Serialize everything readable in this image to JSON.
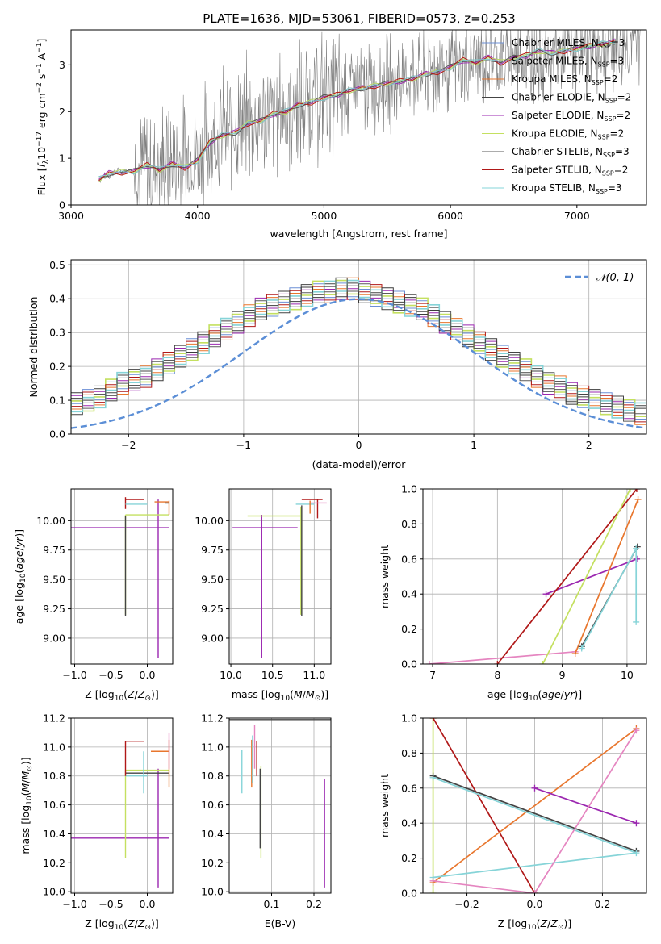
{
  "title": "PLATE=1636, MJD=53061, FIBERID=0573, z=0.253",
  "colors": {
    "chabrier_miles": "#6b8fd6",
    "salpeter_miles": "#3b3b3b",
    "kroupa_miles": "#e8762d",
    "chabrier_elodie": "#444444",
    "salpeter_elodie": "#9b27b0",
    "kroupa_elodie": "#c4e060",
    "chabrier_stelib": "#5a5a5a",
    "salpeter_stelib": "#b01818",
    "kroupa_stelib": "#86d4d8",
    "pink": "#e585c0",
    "normal": "#5b8ed6",
    "spectrum": "#808080"
  },
  "chart_data": [
    {
      "id": "spectrum",
      "type": "line",
      "xlabel": "wavelength [Angstrom, rest frame]",
      "ylabel": "Flux [f_λ 10^-17 erg cm^-2 s^-1 A^-1]",
      "xlim": [
        3000,
        7550
      ],
      "ylim": [
        0,
        3.75
      ],
      "xticks": [
        "3000",
        "4000",
        "5000",
        "6000",
        "7000"
      ],
      "yticks": [
        "0",
        "1",
        "2",
        "3"
      ],
      "legend_position": "top-right",
      "legend": [
        "Chabrier MILES, N_SSP=3",
        "Salpeter MILES, N_SSP=3",
        "Kroupa MILES, N_SSP=2",
        "Chabrier ELODIE, N_SSP=2",
        "Salpeter ELODIE, N_SSP=2",
        "Kroupa ELODIE, N_SSP=2",
        "Chabrier STELIB, N_SSP=3",
        "Salpeter STELIB, N_SSP=2",
        "Kroupa STELIB, N_SSP=3"
      ],
      "data_x": [
        3220,
        3350,
        3500,
        3700,
        3900,
        4100,
        4300,
        4500,
        4700,
        4900,
        5100,
        5300,
        5500,
        5700,
        5900,
        6100,
        6300,
        6500,
        6700,
        6900,
        7100,
        7300,
        7500
      ],
      "data_y": [
        0.55,
        0.7,
        0.75,
        0.85,
        0.95,
        1.4,
        1.65,
        1.85,
        2.05,
        2.25,
        2.45,
        2.5,
        2.6,
        2.75,
        2.9,
        3.0,
        3.1,
        3.15,
        3.2,
        3.3,
        3.35,
        3.45,
        3.5
      ],
      "model_x": [
        3220,
        3300,
        3400,
        3500,
        3600,
        3700,
        3800,
        3900,
        4000,
        4100,
        4200,
        4300,
        4400,
        4500,
        4600,
        4700,
        4800,
        4900,
        5000,
        5100,
        5200,
        5300,
        5400,
        5500,
        5600,
        5700,
        5800,
        5900,
        6000,
        6100,
        6200,
        6300,
        6400,
        6500,
        6600,
        6700,
        6800,
        6900,
        7000,
        7100,
        7200,
        7300
      ],
      "model_y": [
        0.55,
        0.68,
        0.7,
        0.72,
        0.85,
        0.75,
        0.88,
        0.8,
        0.95,
        1.35,
        1.5,
        1.55,
        1.75,
        1.8,
        1.95,
        2.0,
        2.15,
        2.2,
        2.3,
        2.35,
        2.45,
        2.5,
        2.55,
        2.6,
        2.65,
        2.7,
        2.8,
        2.85,
        2.95,
        3.1,
        3.05,
        3.15,
        3.05,
        3.15,
        3.2,
        3.3,
        3.25,
        3.3,
        3.35,
        3.4,
        3.45,
        3.5
      ]
    },
    {
      "id": "residuals",
      "type": "line",
      "xlabel": "(data-model)/error",
      "ylabel": "Normed distribution",
      "xlim": [
        -2.5,
        2.5
      ],
      "ylim": [
        0,
        0.515
      ],
      "xticks": [
        "−2",
        "−1",
        "0",
        "1",
        "2"
      ],
      "yticks": [
        "0.0",
        "0.1",
        "0.2",
        "0.3",
        "0.4",
        "0.5"
      ],
      "grid": true,
      "legend_position": "top-right",
      "legend": [
        "𝒩(0, 1)"
      ],
      "bin_width": 0.1,
      "histogram": [
        0.02,
        0.02,
        0.03,
        0.03,
        0.04,
        0.04,
        0.05,
        0.06,
        0.07,
        0.08,
        0.09,
        0.1,
        0.11,
        0.13,
        0.15,
        0.16,
        0.17,
        0.19,
        0.21,
        0.23,
        0.25,
        0.27,
        0.29,
        0.31,
        0.33,
        0.35,
        0.37,
        0.38,
        0.39,
        0.4,
        0.41,
        0.42,
        0.42,
        0.43,
        0.43,
        0.42,
        0.41,
        0.4,
        0.39,
        0.38,
        0.37,
        0.35,
        0.33,
        0.31,
        0.29,
        0.27,
        0.25,
        0.23,
        0.21,
        0.19,
        0.17,
        0.15,
        0.14,
        0.12,
        0.11,
        0.1,
        0.09,
        0.08,
        0.07,
        0.06,
        0.05,
        0.05,
        0.04,
        0.04,
        0.03,
        0.03,
        0.03,
        0.02,
        0.02,
        0.02
      ],
      "normal_mean": 0,
      "normal_sigma": 1
    },
    {
      "id": "age_vs_Z",
      "type": "scatter",
      "xlabel": "Z [log10(Z/Z⊙)]",
      "ylabel": "age  [log10(age/yr)]",
      "xlim": [
        -1.05,
        0.35
      ],
      "ylim": [
        8.78,
        10.27
      ],
      "xticks": [
        "−1.0",
        "−0.5",
        "0.0",
        "0.5"
      ],
      "yticks": [
        "9.00",
        "9.25",
        "9.50",
        "9.75",
        "10.00"
      ],
      "grid": true,
      "segments": [
        {
          "c": "salpeter_elodie",
          "x1": -1.05,
          "y1": 9.94,
          "x2": 0.3,
          "y2": 9.94
        },
        {
          "c": "salpeter_elodie",
          "x1": 0.15,
          "y1": 8.83,
          "x2": 0.15,
          "y2": 10.18
        },
        {
          "c": "kroupa_elodie",
          "x1": -0.3,
          "y1": 9.2,
          "x2": -0.3,
          "y2": 10.05
        },
        {
          "c": "kroupa_elodie",
          "x1": -0.3,
          "y1": 10.05,
          "x2": 0.3,
          "y2": 10.05
        },
        {
          "c": "chabrier_elodie",
          "x1": -0.3,
          "y1": 9.19,
          "x2": -0.3,
          "y2": 10.04
        },
        {
          "c": "salpeter_stelib",
          "x1": -0.3,
          "y1": 10.18,
          "x2": -0.05,
          "y2": 10.18
        },
        {
          "c": "salpeter_stelib",
          "x1": -0.3,
          "y1": 10.1,
          "x2": -0.3,
          "y2": 10.2
        },
        {
          "c": "kroupa_stelib",
          "x1": -0.3,
          "y1": 10.14,
          "x2": 0.0,
          "y2": 10.14
        },
        {
          "c": "kroupa_miles",
          "x1": 0.1,
          "y1": 10.16,
          "x2": 0.3,
          "y2": 10.16
        },
        {
          "c": "kroupa_miles",
          "x1": 0.3,
          "y1": 10.05,
          "x2": 0.3,
          "y2": 10.17
        },
        {
          "c": "salpeter_miles",
          "x1": 0.25,
          "y1": 10.15,
          "x2": 0.3,
          "y2": 10.15
        }
      ]
    },
    {
      "id": "age_vs_mass",
      "type": "scatter",
      "xlabel": "mass [log10(M/M⊙)]",
      "ylabel": "",
      "xlim": [
        9.98,
        11.2
      ],
      "ylim": [
        8.78,
        10.27
      ],
      "xticks": [
        "10.0",
        "10.5",
        "11.0"
      ],
      "yticks": [
        "9.00",
        "9.25",
        "9.50",
        "9.75",
        "10.00"
      ],
      "grid": true,
      "segments": [
        {
          "c": "salpeter_elodie",
          "x1": 10.02,
          "y1": 9.94,
          "x2": 10.8,
          "y2": 9.94
        },
        {
          "c": "salpeter_elodie",
          "x1": 10.37,
          "y1": 8.83,
          "x2": 10.37,
          "y2": 10.05
        },
        {
          "c": "kroupa_elodie",
          "x1": 10.2,
          "y1": 10.04,
          "x2": 10.84,
          "y2": 10.04
        },
        {
          "c": "kroupa_elodie",
          "x1": 10.84,
          "y1": 9.2,
          "x2": 10.84,
          "y2": 10.12
        },
        {
          "c": "chabrier_elodie",
          "x1": 10.85,
          "y1": 9.19,
          "x2": 10.85,
          "y2": 10.13
        },
        {
          "c": "salpeter_stelib",
          "x1": 10.85,
          "y1": 10.18,
          "x2": 11.1,
          "y2": 10.18
        },
        {
          "c": "salpeter_stelib",
          "x1": 11.04,
          "y1": 10.02,
          "x2": 11.04,
          "y2": 10.18
        },
        {
          "c": "kroupa_stelib",
          "x1": 10.78,
          "y1": 10.14,
          "x2": 11.0,
          "y2": 10.14
        },
        {
          "c": "pink",
          "x1": 10.95,
          "y1": 10.15,
          "x2": 11.15,
          "y2": 10.15
        },
        {
          "c": "kroupa_miles",
          "x1": 10.95,
          "y1": 10.06,
          "x2": 10.95,
          "y2": 10.17
        }
      ]
    },
    {
      "id": "weight_vs_age",
      "type": "line",
      "xlabel": "age  [log10(age/yr)]",
      "ylabel": "mass weight",
      "xlim": [
        6.85,
        10.3
      ],
      "ylim": [
        0,
        1.0
      ],
      "xticks": [
        "7",
        "8",
        "9",
        "10"
      ],
      "yticks": [
        "0.0",
        "0.2",
        "0.4",
        "0.6",
        "0.8",
        "1.0"
      ],
      "grid": true,
      "series": [
        {
          "c": "pink",
          "x": [
            6.95,
            9.2
          ],
          "y": [
            0.0,
            0.07
          ]
        },
        {
          "c": "salpeter_elodie",
          "x": [
            8.75,
            10.15
          ],
          "y": [
            0.4,
            0.6
          ]
        },
        {
          "c": "salpeter_stelib",
          "x": [
            8.0,
            10.15
          ],
          "y": [
            0.0,
            1.0
          ]
        },
        {
          "c": "kroupa_elodie",
          "x": [
            8.7,
            10.05
          ],
          "y": [
            0.0,
            1.0
          ]
        },
        {
          "c": "kroupa_miles",
          "x": [
            9.2,
            10.17
          ],
          "y": [
            0.06,
            0.94
          ]
        },
        {
          "c": "chabrier_elodie",
          "x": [
            9.3,
            10.16
          ],
          "y": [
            0.1,
            0.67
          ]
        },
        {
          "c": "kroupa_stelib",
          "x": [
            9.3,
            10.14,
            10.14
          ],
          "y": [
            0.09,
            0.66,
            0.24
          ]
        }
      ]
    },
    {
      "id": "mass_vs_Z",
      "type": "scatter",
      "xlabel": "Z [log10(Z/Z⊙)]",
      "ylabel": "mass [log10(M/M⊙)]",
      "xlim": [
        -1.05,
        0.35
      ],
      "ylim": [
        9.99,
        11.2
      ],
      "xticks": [
        "−1.0",
        "−0.5",
        "0.0"
      ],
      "yticks": [
        "10.0",
        "10.2",
        "10.4",
        "10.6",
        "10.8",
        "11.0",
        "11.2"
      ],
      "grid": true,
      "segments": [
        {
          "c": "salpeter_elodie",
          "x1": -1.05,
          "y1": 10.37,
          "x2": 0.3,
          "y2": 10.37
        },
        {
          "c": "salpeter_elodie",
          "x1": 0.15,
          "y1": 10.03,
          "x2": 0.15,
          "y2": 10.85
        },
        {
          "c": "kroupa_elodie",
          "x1": -0.3,
          "y1": 10.23,
          "x2": -0.3,
          "y2": 10.84
        },
        {
          "c": "kroupa_elodie",
          "x1": -0.3,
          "y1": 10.84,
          "x2": 0.3,
          "y2": 10.84
        },
        {
          "c": "chabrier_elodie",
          "x1": -0.3,
          "y1": 10.82,
          "x2": 0.3,
          "y2": 10.82
        },
        {
          "c": "kroupa_stelib",
          "x1": -0.3,
          "y1": 10.8,
          "x2": 0.0,
          "y2": 10.8
        },
        {
          "c": "kroupa_stelib",
          "x1": -0.05,
          "y1": 10.68,
          "x2": -0.05,
          "y2": 10.97
        },
        {
          "c": "salpeter_stelib",
          "x1": -0.3,
          "y1": 11.04,
          "x2": -0.05,
          "y2": 11.04
        },
        {
          "c": "salpeter_stelib",
          "x1": -0.3,
          "y1": 10.8,
          "x2": -0.3,
          "y2": 11.04
        },
        {
          "c": "kroupa_miles",
          "x1": 0.05,
          "y1": 10.97,
          "x2": 0.3,
          "y2": 10.97
        },
        {
          "c": "kroupa_miles",
          "x1": 0.3,
          "y1": 10.72,
          "x2": 0.3,
          "y2": 11.05
        },
        {
          "c": "pink",
          "x1": 0.3,
          "y1": 10.85,
          "x2": 0.3,
          "y2": 11.1
        }
      ]
    },
    {
      "id": "mass_vs_ebv",
      "type": "scatter",
      "xlabel": "E(B-V)",
      "ylabel": "",
      "xlim": [
        0.0,
        0.24
      ],
      "ylim": [
        9.99,
        11.2
      ],
      "xticks": [
        "0.1",
        "0.2"
      ],
      "yticks": [
        "10.0",
        "10.2",
        "10.4",
        "10.6",
        "10.8",
        "11.0",
        "11.2"
      ],
      "grid": true,
      "segments": [
        {
          "c": "chabrier_elodie",
          "x1": 0.0,
          "y1": 11.19,
          "x2": 0.24,
          "y2": 11.19
        },
        {
          "c": "kroupa_stelib",
          "x1": 0.03,
          "y1": 10.68,
          "x2": 0.03,
          "y2": 10.98
        },
        {
          "c": "kroupa_miles",
          "x1": 0.053,
          "y1": 10.72,
          "x2": 0.053,
          "y2": 11.05
        },
        {
          "c": "kroupa_stelib",
          "x1": 0.055,
          "y1": 10.75,
          "x2": 0.055,
          "y2": 11.08
        },
        {
          "c": "pink",
          "x1": 0.06,
          "y1": 10.85,
          "x2": 0.06,
          "y2": 11.15
        },
        {
          "c": "salpeter_stelib",
          "x1": 0.065,
          "y1": 10.8,
          "x2": 0.065,
          "y2": 11.04
        },
        {
          "c": "kroupa_elodie",
          "x1": 0.075,
          "y1": 10.23,
          "x2": 0.075,
          "y2": 10.87
        },
        {
          "c": "chabrier_elodie",
          "x1": 0.073,
          "y1": 10.3,
          "x2": 0.073,
          "y2": 10.85
        },
        {
          "c": "salpeter_elodie",
          "x1": 0.225,
          "y1": 10.03,
          "x2": 0.225,
          "y2": 10.78
        }
      ]
    },
    {
      "id": "weight_vs_Z",
      "type": "line",
      "xlabel": "Z [log10(Z/Z⊙)]",
      "ylabel": "mass weight",
      "xlim": [
        -0.33,
        0.33
      ],
      "ylim": [
        0,
        1.0
      ],
      "xticks": [
        "−0.2",
        "0.0",
        "0.2"
      ],
      "yticks": [
        "0.0",
        "0.2",
        "0.4",
        "0.6",
        "0.8",
        "1.0"
      ],
      "grid": true,
      "series": [
        {
          "c": "kroupa_elodie",
          "x": [
            -0.3,
            -0.3
          ],
          "y": [
            0.0,
            1.0
          ]
        },
        {
          "c": "salpeter_stelib",
          "x": [
            -0.3,
            0.0
          ],
          "y": [
            1.0,
            0.0
          ]
        },
        {
          "c": "kroupa_miles",
          "x": [
            -0.3,
            0.3
          ],
          "y": [
            0.06,
            0.94
          ]
        },
        {
          "c": "salpeter_elodie",
          "x": [
            0.0,
            0.3
          ],
          "y": [
            0.6,
            0.4
          ]
        },
        {
          "c": "chabrier_elodie",
          "x": [
            -0.3,
            0.3
          ],
          "y": [
            0.67,
            0.24
          ]
        },
        {
          "c": "kroupa_stelib",
          "x": [
            -0.3,
            0.3,
            -0.3
          ],
          "y": [
            0.66,
            0.23,
            0.09
          ]
        },
        {
          "c": "pink",
          "x": [
            -0.3,
            0.0,
            0.3
          ],
          "y": [
            0.07,
            0.0,
            0.93
          ]
        }
      ]
    }
  ]
}
